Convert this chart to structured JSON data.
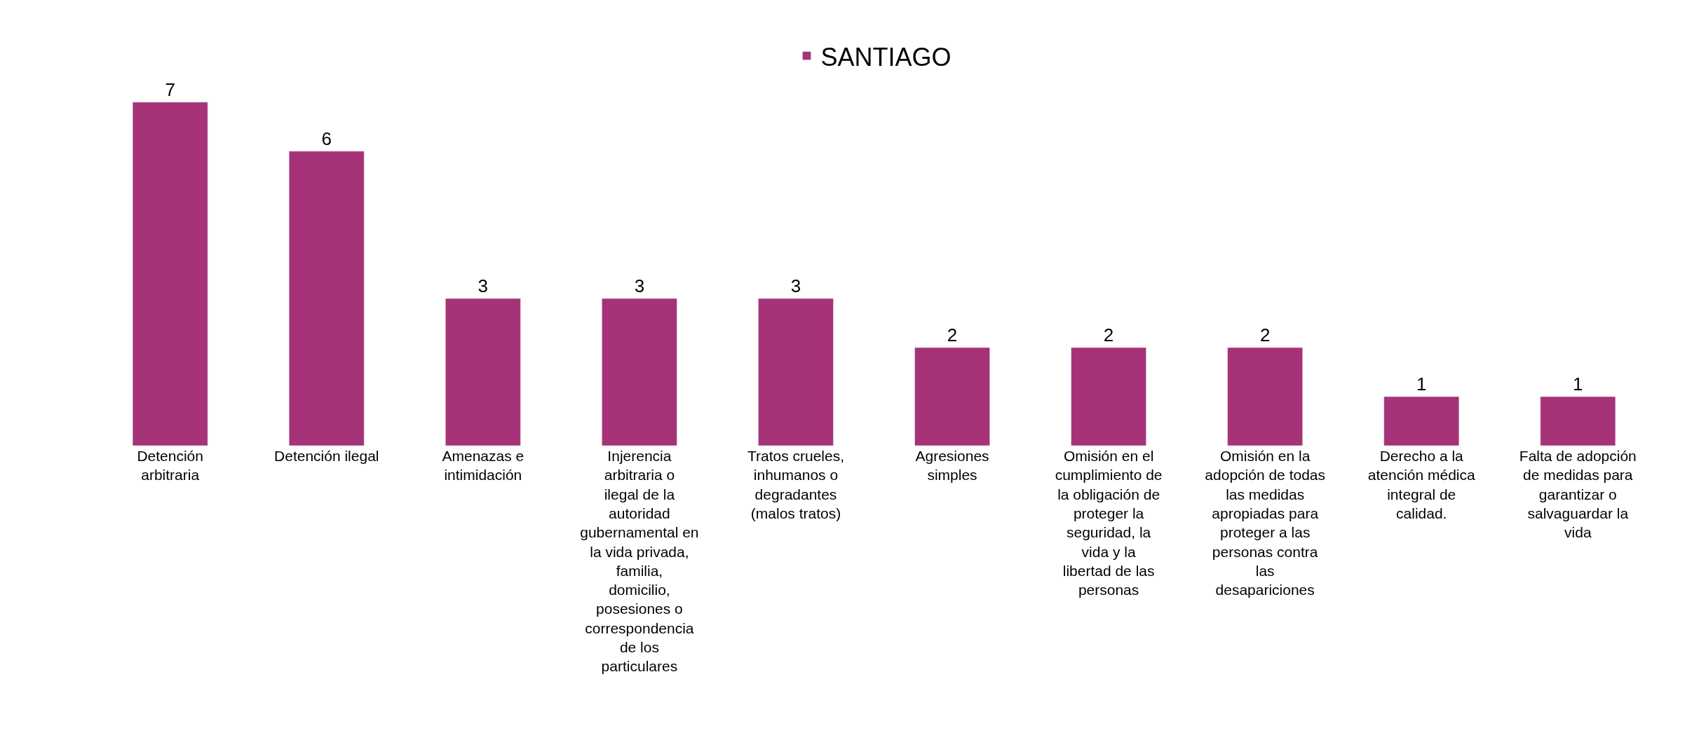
{
  "chart_data": {
    "type": "bar",
    "categories": [
      "Detención arbitraria",
      "Detención ilegal",
      "Amenazas e intimidación",
      "Injerencia arbitraria o ilegal de la autoridad gubernamental en la vida privada, familia, domicilio, posesiones o correspondencia de los particulares",
      "Tratos crueles, inhumanos o degradantes (malos tratos)",
      "Agresiones simples",
      "Omisión en el cumplimiento de la obligación de proteger la seguridad, la vida y la libertad de las personas",
      "Omisión en la adopción de todas las medidas apropiadas para proteger a las personas contra las desapariciones",
      "Derecho a la atención médica integral de calidad.",
      "Falta de adopción de medidas para garantizar o salvaguardar la vida"
    ],
    "series": [
      {
        "name": "SANTIAGO",
        "color": "#a63278",
        "values": [
          7,
          6,
          3,
          3,
          3,
          2,
          2,
          2,
          1,
          1
        ]
      }
    ],
    "data_labels": true,
    "legend": "top",
    "tick_labels": "x"
  }
}
